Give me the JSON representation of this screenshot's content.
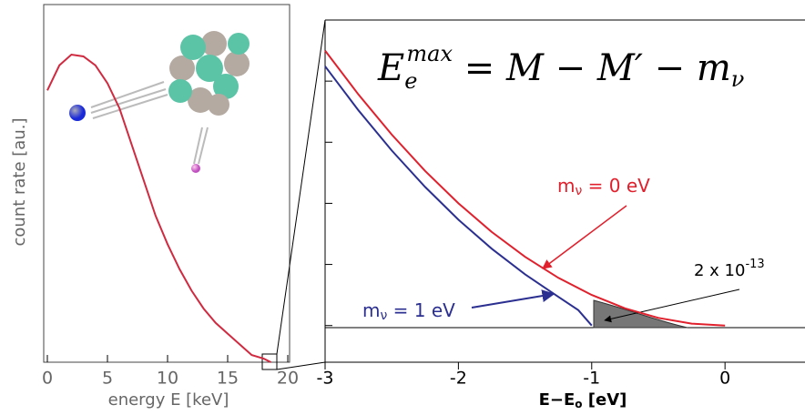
{
  "chart_data": [
    {
      "type": "line",
      "xlabel": "energy E [keV]",
      "ylabel": "count rate [au.]",
      "xlim": [
        0,
        20
      ],
      "ylim": [
        0,
        1
      ],
      "xticks": [
        0,
        5,
        10,
        15,
        20
      ],
      "series": [
        {
          "color": "#d02a40",
          "x": [
            0,
            1,
            2,
            3,
            4,
            5,
            6,
            7,
            8,
            9,
            10,
            11,
            12,
            13,
            14,
            15,
            16,
            17,
            18,
            18.6
          ],
          "values": [
            0.76,
            0.83,
            0.86,
            0.855,
            0.83,
            0.78,
            0.71,
            0.61,
            0.51,
            0.41,
            0.33,
            0.26,
            0.2,
            0.15,
            0.11,
            0.08,
            0.05,
            0.02,
            0.01,
            0
          ]
        }
      ]
    },
    {
      "type": "line",
      "xlabel": [
        "E−E",
        "o",
        " [eV]"
      ],
      "equation": [
        "E",
        "e",
        "max",
        " = M − M′ − m",
        "ν"
      ],
      "annotations": [
        [
          "m",
          "ν",
          " = 0 eV"
        ],
        [
          "m",
          "ν",
          " = 1 eV"
        ],
        [
          "2 x 10",
          "-13"
        ]
      ],
      "xlim": [
        -3,
        0.6
      ],
      "ylim": [
        -0.6,
        5
      ],
      "xticks": [
        -3,
        -2,
        -1,
        0
      ],
      "yticks": [
        0,
        1,
        2,
        3,
        4
      ],
      "series": [
        {
          "color": "#e0202c",
          "x": [
            -3,
            -2.75,
            -2.5,
            -2.25,
            -2,
            -1.75,
            -1.5,
            -1.25,
            -1,
            -0.75,
            -0.5,
            -0.25,
            0
          ],
          "values": [
            4.5,
            3.781,
            3.125,
            2.531,
            2,
            1.531,
            1.125,
            0.781,
            0.5,
            0.281,
            0.125,
            0.031,
            0
          ]
        },
        {
          "color": "#2b2f90",
          "x": [
            -3,
            -2.75,
            -2.5,
            -2.25,
            -2,
            -1.75,
            -1.5,
            -1.25,
            -1.1,
            -1
          ],
          "values": [
            4.243,
            3.522,
            2.864,
            2.268,
            1.732,
            1.257,
            0.839,
            0.469,
            0.252,
            0
          ]
        }
      ]
    }
  ]
}
